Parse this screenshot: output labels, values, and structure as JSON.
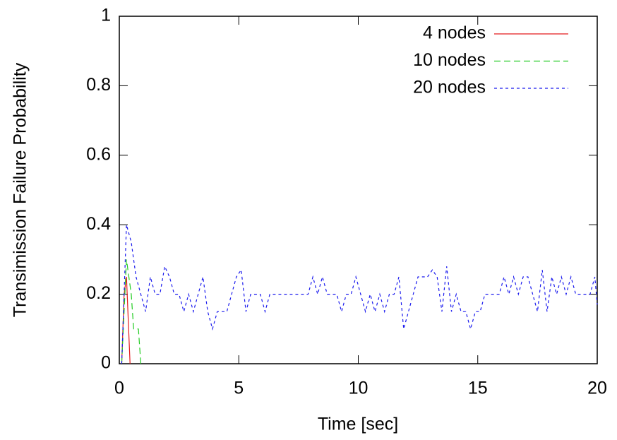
{
  "chart_data": {
    "type": "line",
    "xlabel": "Time [sec]",
    "ylabel": "Transimission Failure Probability",
    "xlim": [
      0,
      20
    ],
    "xticks": [
      0,
      5,
      10,
      15,
      20
    ],
    "ylim": [
      0,
      1
    ],
    "yticks": [
      0,
      0.2,
      0.4,
      0.6,
      0.8,
      1
    ],
    "legend": "upper right",
    "series": [
      {
        "name": "4 nodes",
        "color": "#e41a1c",
        "dash": "solid",
        "x": [
          0.1,
          0.2,
          0.3,
          0.45
        ],
        "values": [
          0,
          0.2,
          0.25,
          0
        ]
      },
      {
        "name": "10 nodes",
        "color": "#22cc22",
        "dash": "dashed",
        "x": [
          0.1,
          0.3,
          0.5,
          0.6,
          0.8,
          0.9
        ],
        "values": [
          0,
          0.3,
          0.2,
          0.1,
          0.1,
          0
        ]
      },
      {
        "name": "20 nodes",
        "color": "#1a1aee",
        "dash": "dotted",
        "x": [
          0.1,
          0.3,
          0.5,
          0.7,
          0.9,
          1.1,
          1.3,
          1.5,
          1.7,
          1.9,
          2.1,
          2.3,
          2.5,
          2.7,
          2.9,
          3.1,
          3.3,
          3.5,
          3.7,
          3.9,
          4.1,
          4.3,
          4.5,
          4.7,
          4.9,
          5.1,
          5.3,
          5.5,
          5.7,
          5.9,
          6.1,
          6.3,
          6.5,
          6.7,
          6.9,
          7.1,
          7.3,
          7.5,
          7.7,
          7.9,
          8.1,
          8.3,
          8.5,
          8.7,
          8.9,
          9.1,
          9.3,
          9.5,
          9.7,
          9.9,
          10.1,
          10.3,
          10.5,
          10.7,
          10.9,
          11.1,
          11.3,
          11.5,
          11.7,
          11.9,
          12.1,
          12.3,
          12.5,
          12.7,
          12.9,
          13.1,
          13.3,
          13.5,
          13.7,
          13.9,
          14.1,
          14.3,
          14.5,
          14.7,
          14.9,
          15.1,
          15.3,
          15.5,
          15.7,
          15.9,
          16.1,
          16.3,
          16.5,
          16.7,
          16.9,
          17.1,
          17.3,
          17.5,
          17.7,
          17.9,
          18.1,
          18.3,
          18.5,
          18.7,
          18.9,
          19.1,
          19.3,
          19.5,
          19.7,
          19.9,
          20
        ],
        "values": [
          0,
          0.4,
          0.35,
          0.25,
          0.2,
          0.15,
          0.25,
          0.2,
          0.2,
          0.28,
          0.25,
          0.2,
          0.2,
          0.15,
          0.2,
          0.15,
          0.2,
          0.25,
          0.15,
          0.1,
          0.15,
          0.15,
          0.15,
          0.2,
          0.25,
          0.27,
          0.15,
          0.2,
          0.2,
          0.2,
          0.15,
          0.2,
          0.2,
          0.2,
          0.2,
          0.2,
          0.2,
          0.2,
          0.2,
          0.2,
          0.25,
          0.2,
          0.25,
          0.2,
          0.2,
          0.2,
          0.15,
          0.2,
          0.2,
          0.25,
          0.2,
          0.15,
          0.2,
          0.15,
          0.2,
          0.15,
          0.2,
          0.2,
          0.25,
          0.1,
          0.15,
          0.2,
          0.25,
          0.25,
          0.25,
          0.27,
          0.25,
          0.15,
          0.28,
          0.15,
          0.2,
          0.15,
          0.15,
          0.1,
          0.15,
          0.15,
          0.2,
          0.2,
          0.2,
          0.2,
          0.25,
          0.2,
          0.25,
          0.2,
          0.25,
          0.25,
          0.2,
          0.15,
          0.27,
          0.15,
          0.25,
          0.2,
          0.25,
          0.2,
          0.25,
          0.2,
          0.2,
          0.2,
          0.2,
          0.25,
          0.17
        ]
      }
    ]
  }
}
